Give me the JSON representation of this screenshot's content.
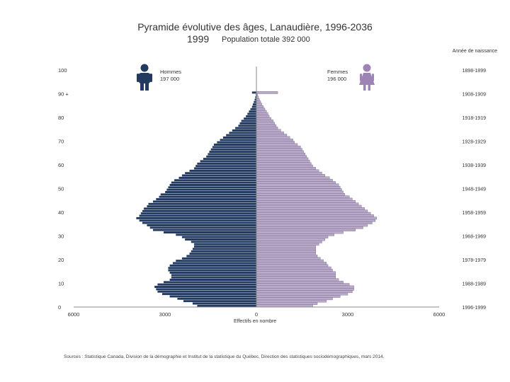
{
  "title": "Pyramide évolutive des âges, Lanaudière, 1996-2036",
  "year": "1999",
  "population_total": "Population totale 392 000",
  "birth_year_header": "Année de naissance",
  "men": {
    "label": "Hommes",
    "total": "197 000"
  },
  "women": {
    "label": "Femmes",
    "total": "196 000"
  },
  "xlabel": "Effectifs en nombre",
  "source": "Sources : Statistique Canada, Division de la démographie et Institut de la statistique du Québec, Direction des statistiques sociodémographiques, mars 2014.",
  "colors": {
    "men": "#233a60",
    "women": "#b8aac8",
    "axis": "#888888"
  },
  "icons": {
    "men": "man-icon",
    "women": "woman-icon"
  },
  "chart_data": {
    "type": "bar",
    "orientation": "horizontal",
    "title": "Pyramide évolutive des âges, Lanaudière, 1996-2036",
    "xlabel": "Effectifs en nombre",
    "xlim": [
      -6000,
      6000
    ],
    "x_ticks": [
      "6000",
      "3000",
      "0",
      "3000",
      "6000"
    ],
    "y_ticks": [
      "0",
      "10",
      "20",
      "30",
      "40",
      "50",
      "60",
      "70",
      "80",
      "90 +",
      "100"
    ],
    "birth_year_ticks": [
      "1996-1999",
      "1988-1989",
      "1978-1979",
      "1968-1969",
      "1958-1959",
      "1948-1949",
      "1938-1939",
      "1928-1929",
      "1918-1919",
      "1908-1909",
      "1898-1899"
    ],
    "ages": [
      0,
      1,
      2,
      3,
      4,
      5,
      6,
      7,
      8,
      9,
      10,
      11,
      12,
      13,
      14,
      15,
      16,
      17,
      18,
      19,
      20,
      21,
      22,
      23,
      24,
      25,
      26,
      27,
      28,
      29,
      30,
      31,
      32,
      33,
      34,
      35,
      36,
      37,
      38,
      39,
      40,
      41,
      42,
      43,
      44,
      45,
      46,
      47,
      48,
      49,
      50,
      51,
      52,
      53,
      54,
      55,
      56,
      57,
      58,
      59,
      60,
      61,
      62,
      63,
      64,
      65,
      66,
      67,
      68,
      69,
      70,
      71,
      72,
      73,
      74,
      75,
      76,
      77,
      78,
      79,
      80,
      81,
      82,
      83,
      84,
      85,
      86,
      87,
      88,
      89,
      90
    ],
    "series": [
      {
        "name": "Hommes",
        "values": [
          1950,
          2100,
          2400,
          2600,
          2850,
          3100,
          3250,
          3300,
          3350,
          3250,
          3050,
          2850,
          2800,
          2800,
          2850,
          2900,
          2900,
          2850,
          2750,
          2650,
          2450,
          2300,
          2200,
          2150,
          2100,
          2050,
          2050,
          2150,
          2350,
          2450,
          2650,
          3050,
          3400,
          3500,
          3600,
          3750,
          3850,
          3950,
          3850,
          3800,
          3750,
          3700,
          3600,
          3550,
          3400,
          3300,
          3200,
          3150,
          3000,
          2950,
          2900,
          2850,
          2800,
          2700,
          2550,
          2450,
          2350,
          2200,
          2050,
          2000,
          1950,
          1850,
          1750,
          1650,
          1600,
          1550,
          1500,
          1450,
          1400,
          1300,
          1200,
          1100,
          1000,
          900,
          800,
          700,
          600,
          550,
          500,
          420,
          350,
          300,
          250,
          200,
          150,
          120,
          90,
          60,
          40,
          25,
          150
        ]
      },
      {
        "name": "Femmes",
        "values": [
          1850,
          2000,
          2300,
          2500,
          2750,
          3000,
          3150,
          3200,
          3200,
          3050,
          2850,
          2700,
          2600,
          2600,
          2600,
          2500,
          2450,
          2350,
          2300,
          2200,
          2100,
          2000,
          1950,
          1950,
          1950,
          1950,
          2050,
          2150,
          2250,
          2350,
          2550,
          2850,
          3250,
          3500,
          3650,
          3800,
          3900,
          3950,
          3850,
          3750,
          3650,
          3550,
          3450,
          3350,
          3250,
          3150,
          3050,
          2900,
          2850,
          2800,
          2750,
          2700,
          2600,
          2500,
          2400,
          2250,
          2150,
          2050,
          1950,
          1850,
          1800,
          1750,
          1700,
          1650,
          1600,
          1550,
          1500,
          1450,
          1350,
          1250,
          1200,
          1100,
          1000,
          900,
          800,
          700,
          650,
          600,
          550,
          480,
          420,
          380,
          330,
          280,
          230,
          180,
          140,
          100,
          70,
          40,
          700
        ]
      }
    ]
  }
}
